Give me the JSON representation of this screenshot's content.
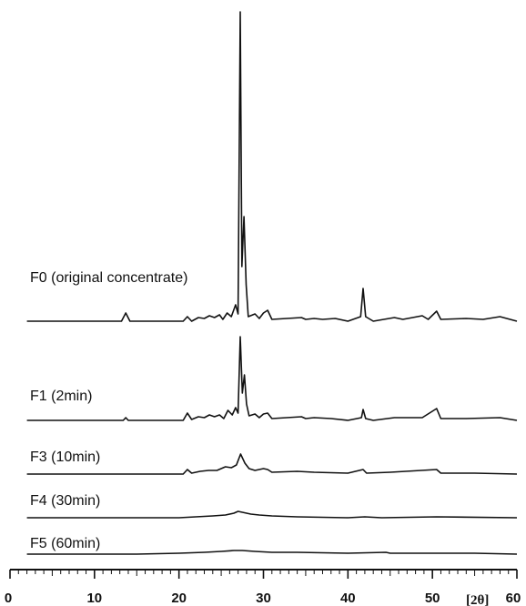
{
  "chart_data": {
    "type": "line",
    "title": "",
    "xlabel": "[2θ]",
    "ylabel": "",
    "xlim": [
      0,
      60
    ],
    "x_ticks": [
      "0",
      "10",
      "20",
      "30",
      "40",
      "50",
      "60"
    ],
    "grid": false,
    "series": [
      {
        "name": "F0 (original concentrate)",
        "points": [
          [
            2,
            0
          ],
          [
            10,
            0
          ],
          [
            13.2,
            0
          ],
          [
            13.7,
            9
          ],
          [
            14.2,
            0
          ],
          [
            20.5,
            0
          ],
          [
            21,
            5
          ],
          [
            21.5,
            0
          ],
          [
            22.3,
            4
          ],
          [
            23,
            3
          ],
          [
            23.6,
            6
          ],
          [
            24.2,
            4
          ],
          [
            24.8,
            7
          ],
          [
            25.2,
            2
          ],
          [
            25.7,
            9
          ],
          [
            26.2,
            5
          ],
          [
            26.7,
            18
          ],
          [
            27,
            8
          ],
          [
            27.25,
            340
          ],
          [
            27.45,
            60
          ],
          [
            27.7,
            115
          ],
          [
            27.95,
            40
          ],
          [
            28.2,
            5
          ],
          [
            29,
            8
          ],
          [
            29.5,
            3
          ],
          [
            30,
            9
          ],
          [
            30.5,
            12
          ],
          [
            31,
            2
          ],
          [
            34.5,
            4
          ],
          [
            35,
            2
          ],
          [
            36,
            3
          ],
          [
            37,
            2
          ],
          [
            38.5,
            3
          ],
          [
            40,
            0
          ],
          [
            41.5,
            5
          ],
          [
            41.8,
            36
          ],
          [
            42.1,
            5
          ],
          [
            43,
            0
          ],
          [
            45.5,
            4
          ],
          [
            46.5,
            2
          ],
          [
            48.8,
            6
          ],
          [
            49.5,
            2
          ],
          [
            50.5,
            11
          ],
          [
            51,
            2
          ],
          [
            54,
            3
          ],
          [
            56,
            2
          ],
          [
            58,
            5
          ],
          [
            60,
            0
          ]
        ]
      },
      {
        "name": "F1 (2min)",
        "points": [
          [
            2,
            0
          ],
          [
            13.4,
            0
          ],
          [
            13.7,
            3
          ],
          [
            14,
            0
          ],
          [
            20.5,
            0
          ],
          [
            21,
            8
          ],
          [
            21.5,
            1
          ],
          [
            22.3,
            4
          ],
          [
            23,
            3
          ],
          [
            23.6,
            6
          ],
          [
            24.2,
            4
          ],
          [
            24.8,
            6
          ],
          [
            25.3,
            2
          ],
          [
            25.8,
            11
          ],
          [
            26.3,
            6
          ],
          [
            26.7,
            14
          ],
          [
            27,
            8
          ],
          [
            27.25,
            92
          ],
          [
            27.5,
            30
          ],
          [
            27.75,
            50
          ],
          [
            28,
            18
          ],
          [
            28.3,
            5
          ],
          [
            29,
            7
          ],
          [
            29.5,
            3
          ],
          [
            30,
            7
          ],
          [
            30.5,
            8
          ],
          [
            31,
            2
          ],
          [
            34.5,
            4
          ],
          [
            35,
            2
          ],
          [
            36,
            3
          ],
          [
            38,
            2
          ],
          [
            40,
            0
          ],
          [
            41.6,
            3
          ],
          [
            41.8,
            12
          ],
          [
            42.1,
            2
          ],
          [
            43,
            0
          ],
          [
            45.5,
            3
          ],
          [
            48.8,
            3
          ],
          [
            50.5,
            13
          ],
          [
            51,
            2
          ],
          [
            54,
            2
          ],
          [
            58,
            3
          ],
          [
            60,
            0
          ]
        ]
      },
      {
        "name": "F3 (10min)",
        "points": [
          [
            2,
            0
          ],
          [
            20.5,
            0
          ],
          [
            21,
            5
          ],
          [
            21.5,
            1
          ],
          [
            22.5,
            3
          ],
          [
            23.5,
            4
          ],
          [
            24.5,
            4
          ],
          [
            25.5,
            8
          ],
          [
            26.2,
            7
          ],
          [
            26.8,
            10
          ],
          [
            27.3,
            22
          ],
          [
            27.8,
            12
          ],
          [
            28.3,
            6
          ],
          [
            29,
            4
          ],
          [
            30,
            6
          ],
          [
            30.5,
            5
          ],
          [
            31,
            2
          ],
          [
            34,
            3
          ],
          [
            36,
            2
          ],
          [
            40,
            1
          ],
          [
            41.8,
            5
          ],
          [
            42.2,
            1
          ],
          [
            45,
            2
          ],
          [
            50.5,
            5
          ],
          [
            51,
            1
          ],
          [
            55,
            1
          ],
          [
            60,
            0
          ]
        ]
      },
      {
        "name": "F4 (30min)",
        "points": [
          [
            2,
            0
          ],
          [
            20,
            0
          ],
          [
            22,
            1
          ],
          [
            24,
            2
          ],
          [
            25.5,
            3
          ],
          [
            26.5,
            5
          ],
          [
            27,
            7
          ],
          [
            27.5,
            6
          ],
          [
            28.5,
            4
          ],
          [
            29.5,
            3
          ],
          [
            31,
            2
          ],
          [
            34,
            1
          ],
          [
            40,
            0
          ],
          [
            42,
            1
          ],
          [
            44,
            0
          ],
          [
            50.5,
            1
          ],
          [
            60,
            0
          ]
        ]
      },
      {
        "name": "F5 (60min)",
        "points": [
          [
            2,
            0
          ],
          [
            15,
            0
          ],
          [
            20,
            1
          ],
          [
            23,
            2
          ],
          [
            25,
            3
          ],
          [
            26.5,
            4
          ],
          [
            27.5,
            4
          ],
          [
            29,
            3
          ],
          [
            31,
            2
          ],
          [
            34,
            2
          ],
          [
            40,
            1
          ],
          [
            44.5,
            2
          ],
          [
            45,
            1
          ],
          [
            50,
            1
          ],
          [
            55,
            1
          ],
          [
            60,
            0
          ]
        ]
      }
    ]
  }
}
